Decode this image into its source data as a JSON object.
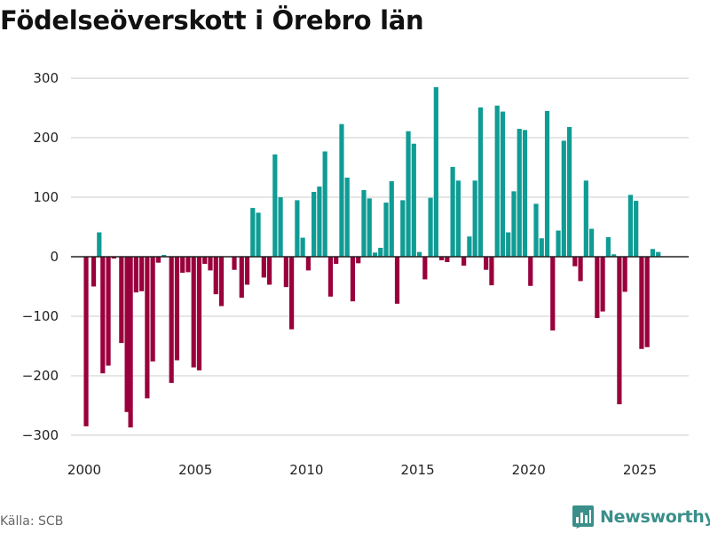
{
  "page": {
    "title": "Födelseöverskott i Örebro län",
    "source": "Källa: SCB",
    "brand": "Newsworthy"
  },
  "colors": {
    "positive": "#0f9c95",
    "negative": "#99003c",
    "grid": "#dddddd",
    "zero_line": "#222222",
    "axis_text": "#222222",
    "brand": "#3a8f8a"
  },
  "chart_data": {
    "type": "bar",
    "title": "Födelseöverskott i Örebro län",
    "xlabel": "",
    "ylabel": "",
    "period": "monthly, centered bars; values read from chart",
    "xlim": [
      1999.4,
      2027.2
    ],
    "ylim": [
      -330,
      330
    ],
    "x_ticks": [
      2000,
      2005,
      2010,
      2015,
      2020,
      2025
    ],
    "y_ticks": [
      -300,
      -200,
      -100,
      0,
      100,
      200,
      300
    ],
    "y_tick_labels": [
      "−300",
      "−200",
      "−100",
      "0",
      "100",
      "200",
      "300"
    ],
    "grid": true,
    "legend": "none",
    "x": [
      2000.08,
      2000.42,
      2000.67,
      2000.83,
      2001.08,
      2001.33,
      2001.67,
      2001.92,
      2002.08,
      2002.33,
      2002.58,
      2002.83,
      2003.08,
      2003.33,
      2003.58,
      2003.92,
      2004.17,
      2004.42,
      2004.67,
      2004.92,
      2005.17,
      2005.42,
      2005.67,
      2005.92,
      2006.17,
      2006.42,
      2006.75,
      2007.08,
      2007.33,
      2007.58,
      2007.83,
      2008.08,
      2008.33,
      2008.58,
      2008.83,
      2009.08,
      2009.33,
      2009.58,
      2009.83,
      2010.08,
      2010.33,
      2010.58,
      2010.83,
      2011.08,
      2011.33,
      2011.58,
      2011.83,
      2012.08,
      2012.33,
      2012.58,
      2012.83,
      2013.08,
      2013.33,
      2013.58,
      2013.83,
      2014.08,
      2014.33,
      2014.58,
      2014.83,
      2015.08,
      2015.33,
      2015.58,
      2015.83,
      2016.08,
      2016.33,
      2016.58,
      2016.83,
      2017.08,
      2017.33,
      2017.58,
      2017.83,
      2018.08,
      2018.33,
      2018.58,
      2018.83,
      2019.08,
      2019.33,
      2019.58,
      2019.83,
      2020.08,
      2020.33,
      2020.58,
      2020.83,
      2021.08,
      2021.33,
      2021.58,
      2021.83,
      2022.08,
      2022.33,
      2022.58,
      2022.83,
      2023.08,
      2023.33,
      2023.58,
      2023.83,
      2024.08,
      2024.33,
      2024.58,
      2024.83,
      2025.08,
      2025.33,
      2025.58,
      2025.83
    ],
    "values": [
      -285,
      -50,
      41,
      -196,
      -183,
      -3,
      -145,
      -261,
      -287,
      -60,
      -58,
      -238,
      -176,
      -10,
      3,
      -212,
      -174,
      -27,
      -26,
      -186,
      -191,
      -12,
      -23,
      -63,
      -83,
      0,
      -22,
      -69,
      -47,
      82,
      74,
      -35,
      -47,
      172,
      100,
      -51,
      -122,
      95,
      32,
      -23,
      109,
      118,
      177,
      -67,
      -12,
      223,
      133,
      -75,
      -11,
      112,
      98,
      7,
      15,
      91,
      127,
      -79,
      95,
      211,
      190,
      8,
      -38,
      99,
      285,
      -6,
      -9,
      151,
      128,
      -15,
      34,
      128,
      251,
      -22,
      -48,
      254,
      244,
      41,
      110,
      215,
      213,
      -49,
      89,
      31,
      245,
      -124,
      44,
      195,
      218,
      -16,
      -41,
      128,
      47,
      -103,
      -92,
      33,
      4,
      -248,
      -59,
      104,
      94,
      -155,
      -152,
      13,
      8
    ]
  }
}
